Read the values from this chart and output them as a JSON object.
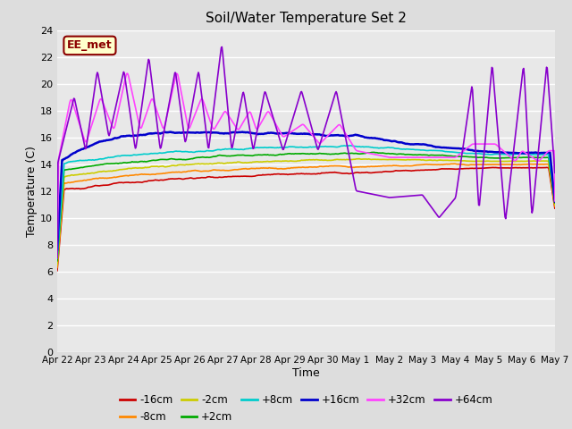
{
  "title": "Soil/Water Temperature Set 2",
  "xlabel": "Time",
  "ylabel": "Temperature (C)",
  "ylim": [
    0,
    24
  ],
  "xlim": [
    0,
    15
  ],
  "yticks": [
    0,
    2,
    4,
    6,
    8,
    10,
    12,
    14,
    16,
    18,
    20,
    22,
    24
  ],
  "xtick_labels": [
    "Apr 22",
    "Apr 23",
    "Apr 24",
    "Apr 25",
    "Apr 26",
    "Apr 27",
    "Apr 28",
    "Apr 29",
    "Apr 30",
    "May 1",
    "May 2",
    "May 3",
    "May 4",
    "May 5",
    "May 6",
    "May 7"
  ],
  "bg_color": "#dddddd",
  "plot_bg_color": "#e8e8e8",
  "grid_color": "#ffffff",
  "annotation_text": "EE_met",
  "annotation_bg": "#ffffcc",
  "annotation_border": "#8b0000",
  "series": {
    "-16cm": {
      "color": "#cc0000",
      "lw": 1.2
    },
    "-8cm": {
      "color": "#ff8800",
      "lw": 1.2
    },
    "-2cm": {
      "color": "#cccc00",
      "lw": 1.2
    },
    "+2cm": {
      "color": "#00aa00",
      "lw": 1.2
    },
    "+8cm": {
      "color": "#00cccc",
      "lw": 1.2
    },
    "+16cm": {
      "color": "#0000cc",
      "lw": 1.8
    },
    "+32cm": {
      "color": "#ff44ff",
      "lw": 1.2
    },
    "+64cm": {
      "color": "#8800cc",
      "lw": 1.2
    }
  },
  "legend_order": [
    "-16cm",
    "-8cm",
    "-2cm",
    "+2cm",
    "+8cm",
    "+16cm",
    "+32cm",
    "+64cm"
  ]
}
